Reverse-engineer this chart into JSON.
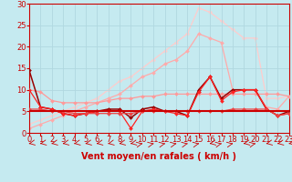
{
  "background_color": "#c5eaf0",
  "grid_color": "#b0d8e0",
  "xlabel": "Vent moyen/en rafales ( km/h )",
  "xlabel_color": "#cc0000",
  "xlabel_fontsize": 7,
  "tick_color": "#cc0000",
  "tick_fontsize": 6,
  "ylim": [
    0,
    30
  ],
  "xlim": [
    0,
    23
  ],
  "yticks": [
    0,
    5,
    10,
    15,
    20,
    25,
    30
  ],
  "xticks": [
    0,
    1,
    2,
    3,
    4,
    5,
    6,
    7,
    8,
    9,
    10,
    11,
    12,
    13,
    14,
    15,
    16,
    17,
    18,
    19,
    20,
    21,
    22,
    23
  ],
  "series": [
    {
      "x": [
        0,
        1,
        2,
        3,
        4,
        5,
        6,
        7,
        8,
        9,
        10,
        11,
        12,
        13,
        14,
        15,
        16,
        17,
        18,
        19,
        20,
        21,
        22,
        23
      ],
      "y": [
        2,
        3,
        4,
        5,
        6,
        7,
        8,
        10,
        12,
        13,
        15,
        17,
        19,
        21,
        23,
        29,
        28,
        26,
        24,
        22,
        22,
        8,
        8,
        8.5
      ],
      "color": "#ffcccc",
      "linewidth": 0.9,
      "marker": "D",
      "markersize": 2.0,
      "zorder": 1
    },
    {
      "x": [
        0,
        1,
        2,
        3,
        4,
        5,
        6,
        7,
        8,
        9,
        10,
        11,
        12,
        13,
        14,
        15,
        16,
        17,
        18,
        19,
        20,
        21,
        22,
        23
      ],
      "y": [
        1,
        2,
        3,
        4,
        5,
        6,
        7,
        8,
        9,
        11,
        13,
        14,
        16,
        17,
        19,
        23,
        22,
        21,
        10,
        10,
        10,
        6,
        5.5,
        8.5
      ],
      "color": "#ffaaaa",
      "linewidth": 0.9,
      "marker": "D",
      "markersize": 2.0,
      "zorder": 2
    },
    {
      "x": [
        0,
        1,
        2,
        3,
        4,
        5,
        6,
        7,
        8,
        9,
        10,
        11,
        12,
        13,
        14,
        15,
        16,
        17,
        18,
        19,
        20,
        21,
        22,
        23
      ],
      "y": [
        10,
        9.5,
        7.5,
        7,
        7,
        7,
        7,
        7.5,
        8,
        8,
        8.5,
        8.5,
        9,
        9,
        9,
        9,
        9,
        9,
        9,
        9,
        9,
        9,
        9,
        8.5
      ],
      "color": "#ff9999",
      "linewidth": 0.9,
      "marker": "D",
      "markersize": 2.0,
      "zorder": 3
    },
    {
      "x": [
        0,
        1,
        2,
        3,
        4,
        5,
        6,
        7,
        8,
        9,
        10,
        11,
        12,
        13,
        14,
        15,
        16,
        17,
        18,
        19,
        20,
        21,
        22,
        23
      ],
      "y": [
        5,
        5,
        5,
        5,
        5,
        5,
        5,
        5,
        5,
        5,
        5,
        5,
        5,
        5,
        5,
        5,
        5,
        5,
        5,
        5,
        5,
        5,
        5,
        5
      ],
      "color": "#cc0000",
      "linewidth": 1.5,
      "marker": null,
      "markersize": 0,
      "zorder": 7
    },
    {
      "x": [
        0,
        1,
        2,
        3,
        4,
        5,
        6,
        7,
        8,
        9,
        10,
        11,
        12,
        13,
        14,
        15,
        16,
        17,
        18,
        19,
        20,
        21,
        22,
        23
      ],
      "y": [
        10,
        6,
        5.5,
        4.5,
        4,
        4.5,
        5,
        5,
        5,
        1,
        5,
        5.5,
        5,
        4.5,
        4,
        9.5,
        13,
        7.5,
        9.5,
        10,
        10,
        5.5,
        4,
        4.5
      ],
      "color": "#ff2222",
      "linewidth": 0.9,
      "marker": "D",
      "markersize": 2.0,
      "zorder": 5
    },
    {
      "x": [
        0,
        1,
        2,
        3,
        4,
        5,
        6,
        7,
        8,
        9,
        10,
        11,
        12,
        13,
        14,
        15,
        16,
        17,
        18,
        19,
        20,
        21,
        22,
        23
      ],
      "y": [
        5.5,
        5.5,
        5,
        5,
        4.5,
        4.5,
        4.5,
        4.5,
        4.5,
        4.5,
        5,
        5,
        5,
        5,
        5,
        5,
        5,
        5,
        5.5,
        5.5,
        5.5,
        5.5,
        4,
        4.5
      ],
      "color": "#ee4444",
      "linewidth": 0.9,
      "marker": "D",
      "markersize": 2.0,
      "zorder": 6
    },
    {
      "x": [
        0,
        1,
        2,
        3,
        4,
        5,
        6,
        7,
        8,
        9,
        10,
        11,
        12,
        13,
        14,
        15,
        16,
        17,
        18,
        19,
        20,
        21,
        22,
        23
      ],
      "y": [
        14.5,
        6,
        5.5,
        4.5,
        4,
        4.5,
        5,
        5.5,
        5.5,
        3.5,
        5.5,
        6,
        5,
        5,
        4,
        10,
        13,
        8,
        10,
        10,
        10,
        5.5,
        4,
        5
      ],
      "color": "#990000",
      "linewidth": 1.1,
      "marker": "D",
      "markersize": 2.0,
      "zorder": 4
    }
  ]
}
